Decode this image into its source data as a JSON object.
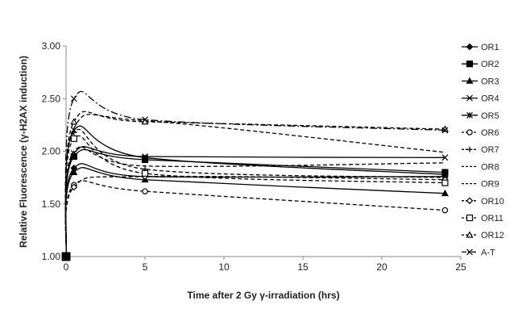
{
  "chart_data": {
    "type": "line",
    "xlabel": "Time after 2 Gy γ-irradiation (hrs)",
    "ylabel": "Relative Fluorescence (γ-H2AX induction)",
    "xlim": [
      0,
      25
    ],
    "ylim": [
      1.0,
      3.0
    ],
    "x_ticks": [
      "0",
      "5",
      "10",
      "15",
      "20",
      "25"
    ],
    "y_ticks": [
      "1.00",
      "1.50",
      "2.00",
      "2.50",
      "3.00"
    ],
    "grid": false,
    "legend_position": "right",
    "x": [
      0,
      0.5,
      5,
      24
    ],
    "series": [
      {
        "name": "OR1",
        "values": [
          1.0,
          1.84,
          1.76,
          1.76
        ],
        "style": "solid",
        "marker": "diamond"
      },
      {
        "name": "OR2",
        "values": [
          1.0,
          1.95,
          1.92,
          1.8
        ],
        "style": "solid",
        "marker": "square"
      },
      {
        "name": "OR3",
        "values": [
          1.0,
          1.8,
          1.73,
          1.6
        ],
        "style": "solid",
        "marker": "triangle"
      },
      {
        "name": "OR4",
        "values": [
          1.0,
          1.98,
          1.95,
          1.94
        ],
        "style": "solid",
        "marker": "x"
      },
      {
        "name": "OR5",
        "values": [
          1.0,
          2.2,
          1.94,
          1.78
        ],
        "style": "solid",
        "marker": "star"
      },
      {
        "name": "OR6",
        "values": [
          1.0,
          1.68,
          1.62,
          1.44
        ],
        "style": "dashed",
        "marker": "circle"
      },
      {
        "name": "OR7",
        "values": [
          1.0,
          2.18,
          1.83,
          1.75
        ],
        "style": "dashed",
        "marker": "plus"
      },
      {
        "name": "OR8",
        "values": [
          1.0,
          2.22,
          2.29,
          1.99
        ],
        "style": "dashed",
        "marker": "none"
      },
      {
        "name": "OR9",
        "values": [
          1.0,
          2.0,
          1.86,
          1.89
        ],
        "style": "dashed",
        "marker": "none"
      },
      {
        "name": "OR10",
        "values": [
          1.0,
          1.66,
          1.76,
          1.73
        ],
        "style": "dashed",
        "marker": "diamond-open"
      },
      {
        "name": "OR11",
        "values": [
          1.0,
          2.12,
          1.79,
          1.7
        ],
        "style": "dashed",
        "marker": "square-open"
      },
      {
        "name": "OR12",
        "values": [
          1.0,
          2.28,
          2.28,
          2.21
        ],
        "style": "dashed",
        "marker": "triangle-open"
      },
      {
        "name": "A-T",
        "values": [
          1.0,
          2.5,
          2.3,
          2.2
        ],
        "style": "dashdot",
        "marker": "x"
      }
    ]
  }
}
